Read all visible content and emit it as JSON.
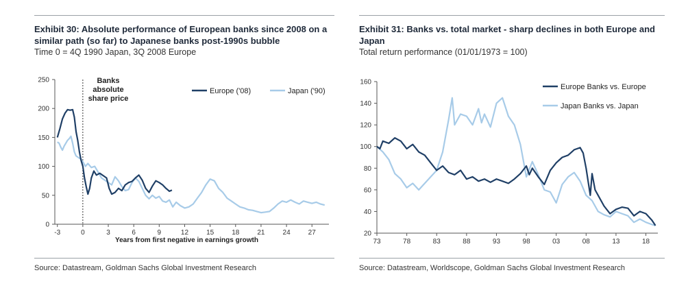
{
  "colors": {
    "dark": "#1f3f66",
    "light": "#a7cbe8",
    "axis": "#555555",
    "rule": "#9aa0a6"
  },
  "left": {
    "title": "Exhibit 30: Absolute performance of European banks since 2008 on a similar path (so far) to Japanese banks post-1990s bubble",
    "subtitle": "Time 0 = 4Q 1990 Japan, 3Q 2008 Europe",
    "source": "Source: Datastream, Goldman Sachs Global Investment Research"
  },
  "right": {
    "title": "Exhibit 31: Banks vs. total market - sharp declines in both Europe and Japan",
    "subtitle": "Total return performance (01/01/1973 = 100)",
    "source": "Source: Datastream, Worldscope, Goldman Sachs Global Investment Research"
  },
  "chart_data": [
    {
      "type": "line",
      "xlabel": "Years from first negative in earnings growth",
      "ylabel": "",
      "xlim": [
        -3.3,
        29
      ],
      "ylim": [
        0,
        250
      ],
      "xticks": [
        -3,
        0,
        3,
        6,
        9,
        12,
        15,
        18,
        21,
        24,
        27
      ],
      "yticks": [
        0,
        50,
        100,
        150,
        200,
        250
      ],
      "annotation": [
        "Banks",
        "absolute",
        "share price"
      ],
      "vline_x": 0,
      "legend_position": "top",
      "series": [
        {
          "name": "Europe ('08)",
          "color": "dark",
          "points": [
            [
              -3,
              150
            ],
            [
              -2.7,
              165
            ],
            [
              -2.4,
              182
            ],
            [
              -2.1,
              192
            ],
            [
              -1.8,
              198
            ],
            [
              -1.5,
              197
            ],
            [
              -1.2,
              198
            ],
            [
              -1.0,
              185
            ],
            [
              -0.8,
              160
            ],
            [
              -0.6,
              145
            ],
            [
              -0.4,
              125
            ],
            [
              -0.2,
              110
            ],
            [
              0,
              100
            ],
            [
              0.2,
              80
            ],
            [
              0.4,
              65
            ],
            [
              0.6,
              52
            ],
            [
              0.8,
              62
            ],
            [
              1.0,
              80
            ],
            [
              1.3,
              92
            ],
            [
              1.6,
              85
            ],
            [
              2.0,
              88
            ],
            [
              2.4,
              84
            ],
            [
              2.8,
              80
            ],
            [
              3.1,
              62
            ],
            [
              3.4,
              52
            ],
            [
              3.8,
              55
            ],
            [
              4.2,
              62
            ],
            [
              4.6,
              58
            ],
            [
              5.0,
              68
            ],
            [
              5.4,
              72
            ],
            [
              5.8,
              74
            ],
            [
              6.2,
              80
            ],
            [
              6.6,
              85
            ],
            [
              7.0,
              76
            ],
            [
              7.4,
              62
            ],
            [
              7.8,
              55
            ],
            [
              8.2,
              66
            ],
            [
              8.6,
              75
            ],
            [
              9.0,
              72
            ],
            [
              9.4,
              68
            ],
            [
              9.8,
              62
            ],
            [
              10.2,
              57
            ],
            [
              10.5,
              59
            ]
          ]
        },
        {
          "name": "Japan ('90)",
          "color": "light",
          "points": [
            [
              -3,
              142
            ],
            [
              -2.8,
              140
            ],
            [
              -2.6,
              133
            ],
            [
              -2.4,
              128
            ],
            [
              -2.2,
              135
            ],
            [
              -2.0,
              140
            ],
            [
              -1.8,
              145
            ],
            [
              -1.6,
              148
            ],
            [
              -1.4,
              152
            ],
            [
              -1.2,
              140
            ],
            [
              -1.0,
              125
            ],
            [
              -0.8,
              118
            ],
            [
              -0.5,
              115
            ],
            [
              -0.2,
              112
            ],
            [
              0,
              108
            ],
            [
              0.3,
              100
            ],
            [
              0.6,
              105
            ],
            [
              1.0,
              98
            ],
            [
              1.4,
              100
            ],
            [
              1.8,
              90
            ],
            [
              2.2,
              80
            ],
            [
              2.6,
              76
            ],
            [
              3.0,
              72
            ],
            [
              3.4,
              68
            ],
            [
              3.8,
              82
            ],
            [
              4.2,
              75
            ],
            [
              4.6,
              65
            ],
            [
              5.0,
              58
            ],
            [
              5.4,
              60
            ],
            [
              5.8,
              72
            ],
            [
              6.2,
              80
            ],
            [
              6.6,
              74
            ],
            [
              7.0,
              62
            ],
            [
              7.4,
              50
            ],
            [
              7.8,
              44
            ],
            [
              8.2,
              50
            ],
            [
              8.6,
              45
            ],
            [
              9.0,
              48
            ],
            [
              9.4,
              40
            ],
            [
              9.8,
              38
            ],
            [
              10.2,
              42
            ],
            [
              10.6,
              30
            ],
            [
              11.0,
              38
            ],
            [
              11.5,
              32
            ],
            [
              12.0,
              28
            ],
            [
              12.5,
              30
            ],
            [
              13.0,
              35
            ],
            [
              13.5,
              45
            ],
            [
              14.0,
              55
            ],
            [
              14.5,
              68
            ],
            [
              15.0,
              78
            ],
            [
              15.5,
              75
            ],
            [
              16.0,
              62
            ],
            [
              16.5,
              55
            ],
            [
              17.0,
              45
            ],
            [
              17.5,
              40
            ],
            [
              18.0,
              35
            ],
            [
              18.5,
              30
            ],
            [
              19.0,
              28
            ],
            [
              19.5,
              25
            ],
            [
              20.0,
              24
            ],
            [
              20.5,
              22
            ],
            [
              21.0,
              20
            ],
            [
              21.5,
              21
            ],
            [
              22.0,
              22
            ],
            [
              22.5,
              28
            ],
            [
              23.0,
              35
            ],
            [
              23.5,
              40
            ],
            [
              24.0,
              38
            ],
            [
              24.5,
              42
            ],
            [
              25.0,
              38
            ],
            [
              25.5,
              35
            ],
            [
              26.0,
              40
            ],
            [
              26.5,
              38
            ],
            [
              27.0,
              36
            ],
            [
              27.5,
              38
            ],
            [
              28.0,
              35
            ],
            [
              28.5,
              33
            ]
          ]
        }
      ]
    },
    {
      "type": "line",
      "xlabel": "",
      "ylabel": "",
      "xlim": [
        1973,
        2020
      ],
      "ylim": [
        20,
        160
      ],
      "xticks": [
        1973,
        1978,
        1983,
        1988,
        1993,
        1998,
        2003,
        2008,
        2013,
        2018
      ],
      "xticklabels": [
        "73",
        "78",
        "83",
        "88",
        "93",
        "98",
        "03",
        "08",
        "13",
        "18"
      ],
      "yticks": [
        20,
        40,
        60,
        80,
        100,
        120,
        140,
        160
      ],
      "legend_position": "top-right",
      "series": [
        {
          "name": "Europe Banks vs. Europe",
          "color": "dark",
          "points": [
            [
              1973,
              100
            ],
            [
              1973.5,
              98
            ],
            [
              1974,
              105
            ],
            [
              1975,
              103
            ],
            [
              1976,
              108
            ],
            [
              1977,
              105
            ],
            [
              1978,
              98
            ],
            [
              1979,
              102
            ],
            [
              1980,
              95
            ],
            [
              1981,
              92
            ],
            [
              1982,
              85
            ],
            [
              1983,
              78
            ],
            [
              1984,
              82
            ],
            [
              1985,
              76
            ],
            [
              1986,
              74
            ],
            [
              1987,
              78
            ],
            [
              1988,
              70
            ],
            [
              1989,
              72
            ],
            [
              1990,
              68
            ],
            [
              1991,
              70
            ],
            [
              1992,
              67
            ],
            [
              1993,
              70
            ],
            [
              1994,
              68
            ],
            [
              1995,
              66
            ],
            [
              1996,
              70
            ],
            [
              1997,
              75
            ],
            [
              1998,
              82
            ],
            [
              1998.5,
              74
            ],
            [
              1999,
              80
            ],
            [
              2000,
              72
            ],
            [
              2001,
              65
            ],
            [
              2002,
              78
            ],
            [
              2003,
              85
            ],
            [
              2004,
              90
            ],
            [
              2005,
              92
            ],
            [
              2006,
              97
            ],
            [
              2007,
              99
            ],
            [
              2007.5,
              94
            ],
            [
              2008,
              80
            ],
            [
              2008.7,
              55
            ],
            [
              2009,
              75
            ],
            [
              2009.5,
              60
            ],
            [
              2010,
              55
            ],
            [
              2011,
              45
            ],
            [
              2012,
              38
            ],
            [
              2013,
              42
            ],
            [
              2014,
              44
            ],
            [
              2015,
              43
            ],
            [
              2016,
              36
            ],
            [
              2017,
              40
            ],
            [
              2018,
              38
            ],
            [
              2019,
              32
            ],
            [
              2019.6,
              27
            ]
          ]
        },
        {
          "name": "Japan Banks vs. Japan",
          "color": "light",
          "points": [
            [
              1973,
              100
            ],
            [
              1974,
              95
            ],
            [
              1975,
              88
            ],
            [
              1976,
              75
            ],
            [
              1977,
              70
            ],
            [
              1978,
              62
            ],
            [
              1979,
              66
            ],
            [
              1980,
              60
            ],
            [
              1981,
              66
            ],
            [
              1982,
              72
            ],
            [
              1983,
              78
            ],
            [
              1984,
              95
            ],
            [
              1985,
              125
            ],
            [
              1985.6,
              145
            ],
            [
              1986,
              120
            ],
            [
              1987,
              130
            ],
            [
              1988,
              128
            ],
            [
              1989,
              120
            ],
            [
              1990,
              135
            ],
            [
              1990.5,
              122
            ],
            [
              1991,
              130
            ],
            [
              1992,
              118
            ],
            [
              1993,
              140
            ],
            [
              1994,
              145
            ],
            [
              1995,
              128
            ],
            [
              1996,
              120
            ],
            [
              1997,
              102
            ],
            [
              1998,
              72
            ],
            [
              1999,
              86
            ],
            [
              2000,
              74
            ],
            [
              2001,
              60
            ],
            [
              2002,
              58
            ],
            [
              2003,
              48
            ],
            [
              2004,
              65
            ],
            [
              2005,
              72
            ],
            [
              2006,
              76
            ],
            [
              2007,
              68
            ],
            [
              2008,
              55
            ],
            [
              2009,
              50
            ],
            [
              2010,
              40
            ],
            [
              2011,
              37
            ],
            [
              2012,
              35
            ],
            [
              2013,
              40
            ],
            [
              2014,
              38
            ],
            [
              2015,
              36
            ],
            [
              2016,
              30
            ],
            [
              2017,
              33
            ],
            [
              2018,
              30
            ],
            [
              2019,
              28
            ],
            [
              2019.6,
              27
            ]
          ]
        }
      ]
    }
  ]
}
